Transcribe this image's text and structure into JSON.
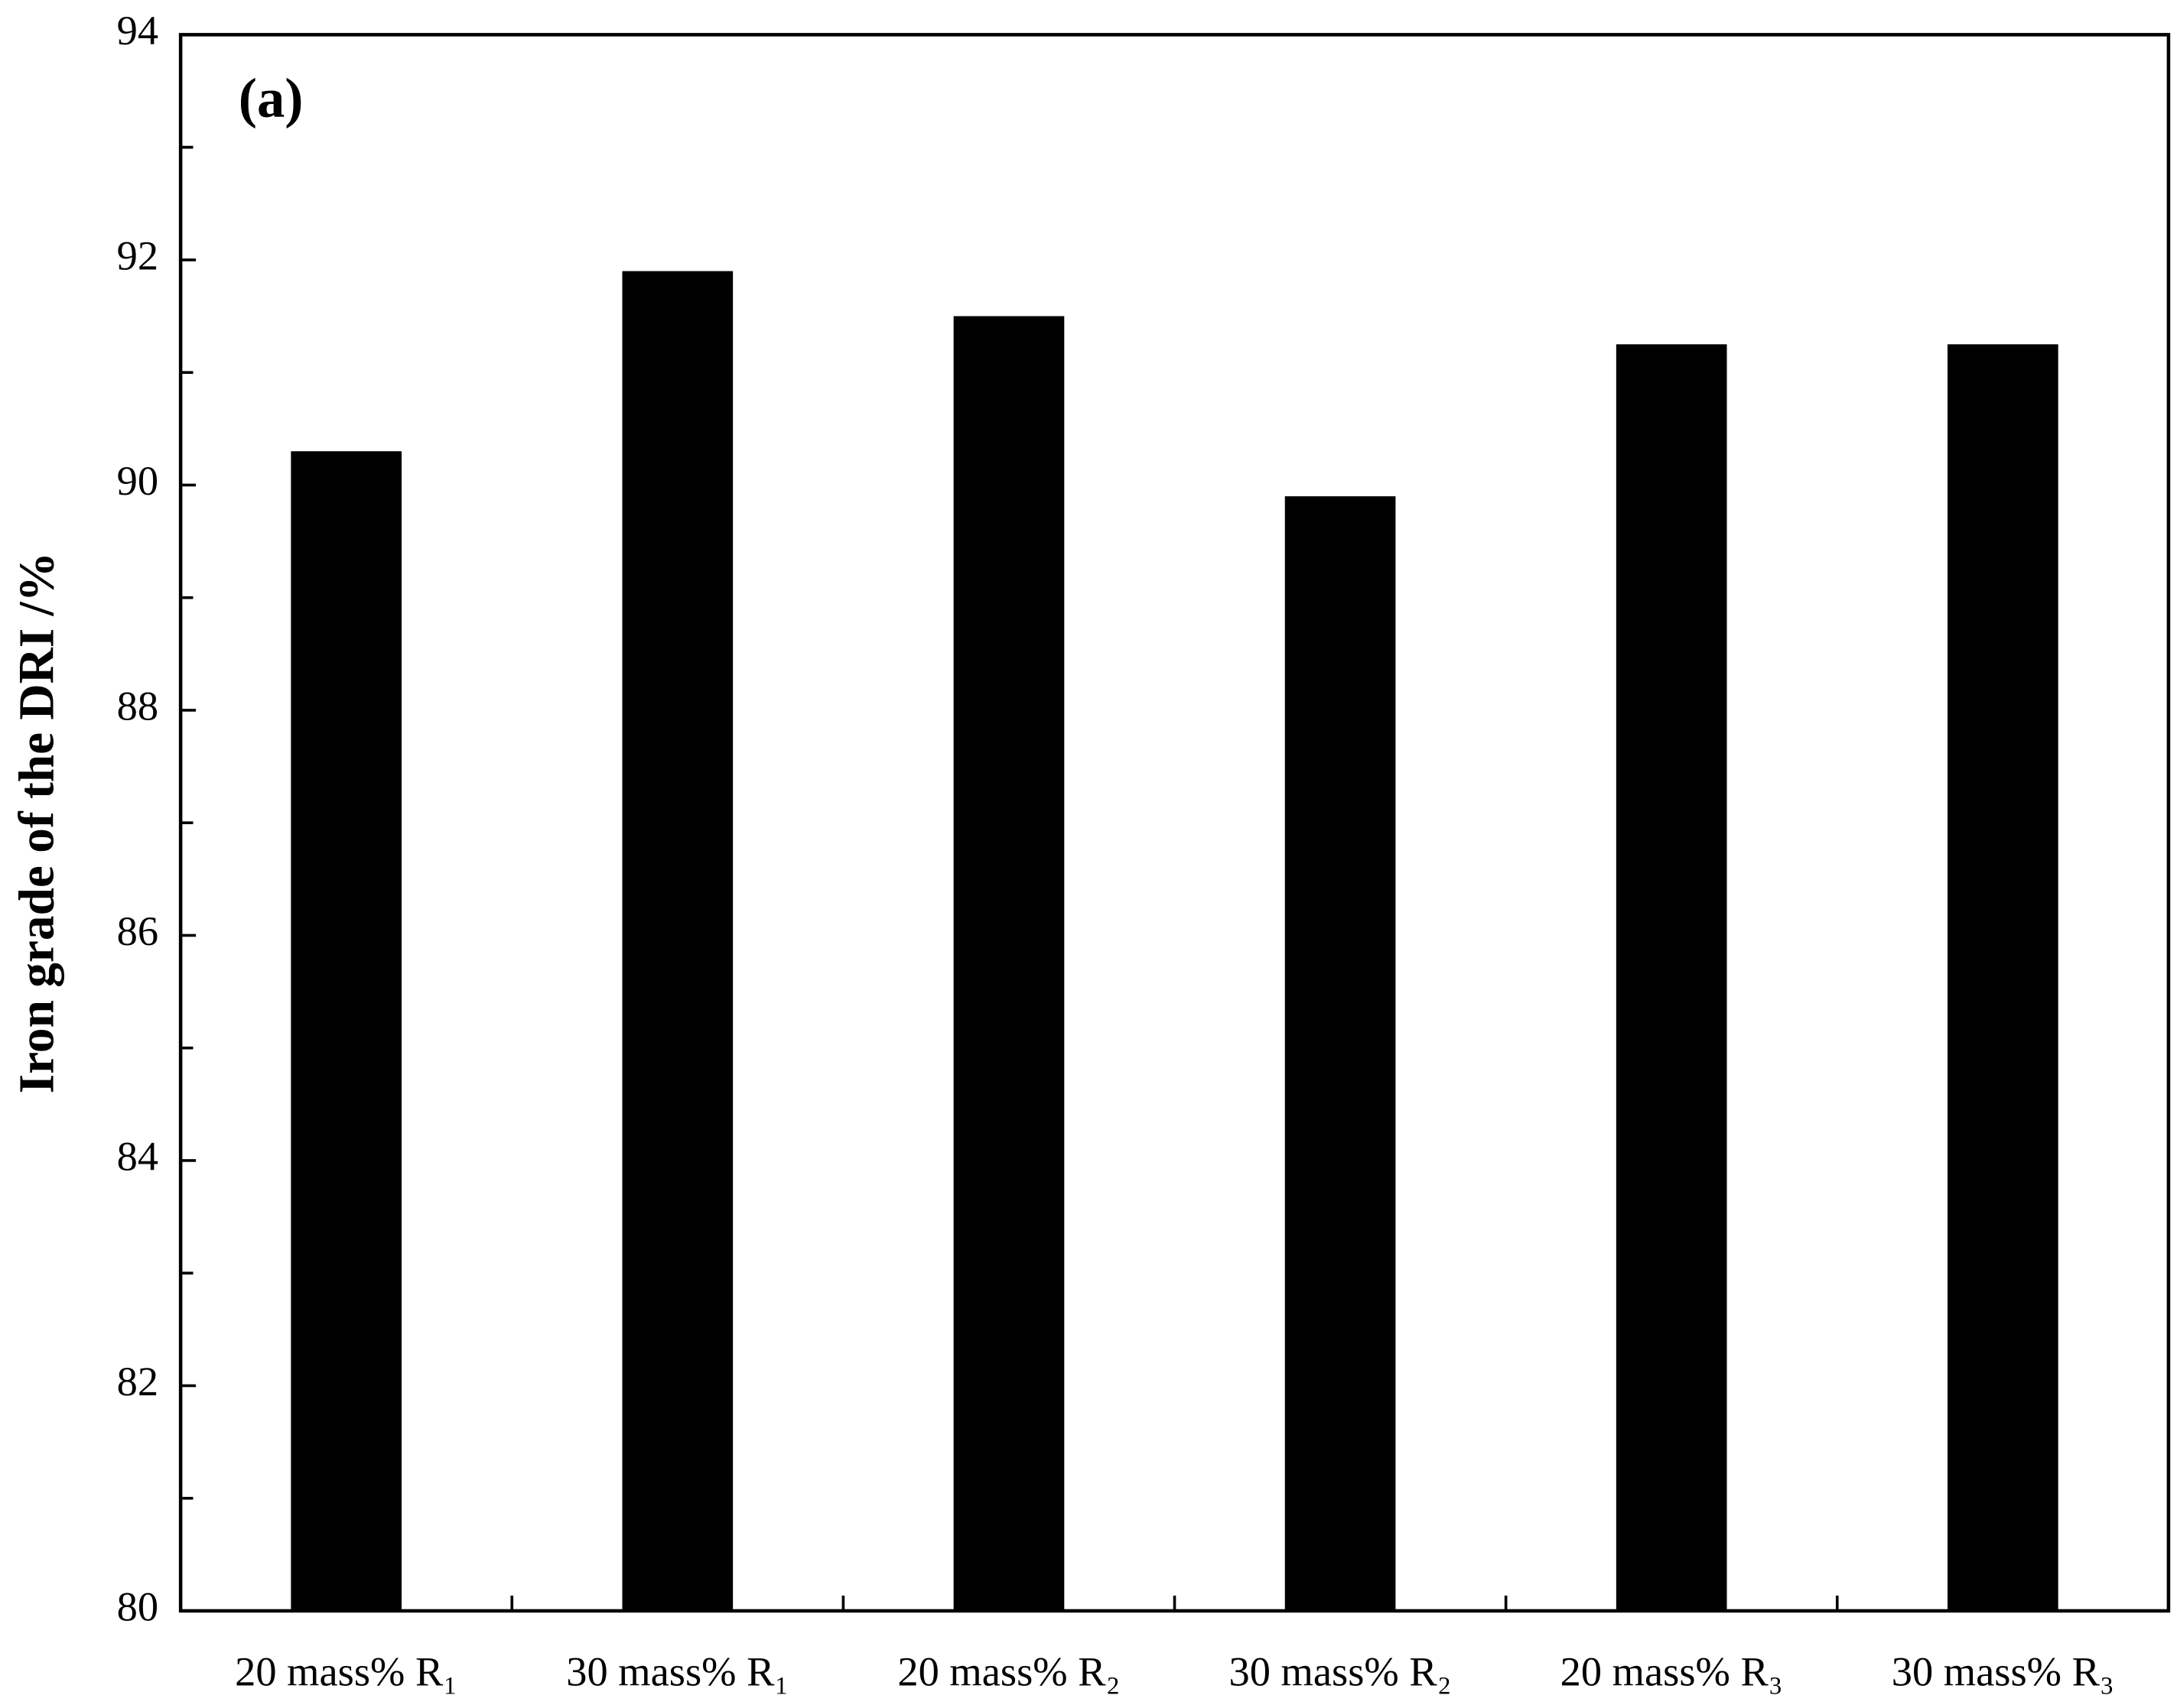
{
  "chart_data": {
    "type": "bar",
    "y_label": "Iron grade of the DRI /%",
    "annotation": "(a)",
    "categories": [
      "20 mass% R₁",
      "30 mass% R₁",
      "20 mass% R₂",
      "30 mass% R₂",
      "20 mass% R₃",
      "30 mass% R₃"
    ],
    "values": [
      90.3,
      91.9,
      91.5,
      89.9,
      91.25,
      91.25
    ],
    "color": "#000000",
    "ylim": [
      80,
      94
    ],
    "yticks": [
      80,
      82,
      84,
      86,
      88,
      90,
      92,
      94
    ],
    "minor_yticks": [
      81,
      83,
      85,
      87,
      89,
      91,
      93
    ],
    "grid": false
  }
}
